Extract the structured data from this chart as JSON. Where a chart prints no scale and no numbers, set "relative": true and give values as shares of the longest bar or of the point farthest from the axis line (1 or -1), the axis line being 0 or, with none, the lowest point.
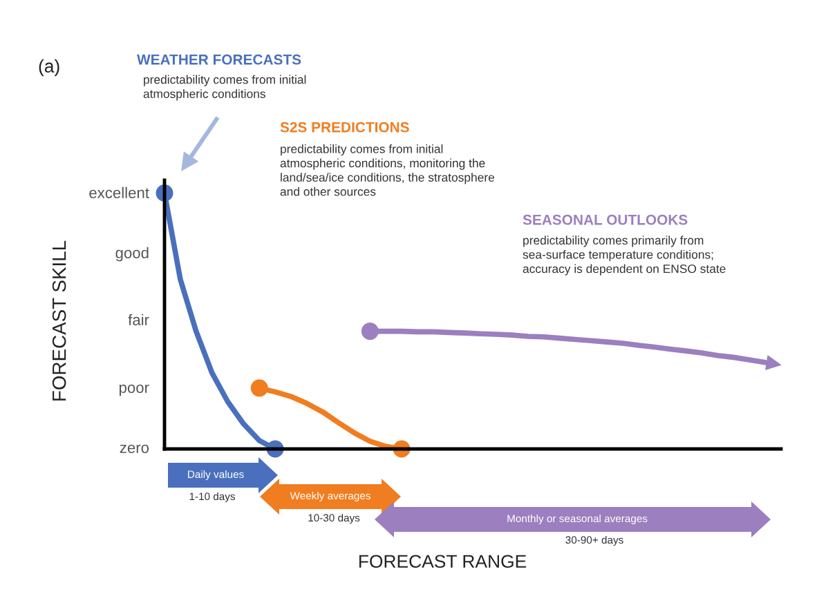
{
  "chart_data": {
    "type": "line",
    "categories": [
      null,
      null,
      null,
      null,
      null,
      null,
      null,
      null,
      null,
      null,
      null,
      null,
      null,
      null,
      null,
      null,
      null,
      null,
      null,
      null,
      null,
      null,
      null,
      null,
      null,
      null,
      null,
      null,
      null,
      null,
      null,
      null,
      null,
      null,
      null,
      null,
      null,
      null,
      null,
      null
    ],
    "relative": true,
    "grid": false,
    "line_style": "solid",
    "series": [
      {
        "color": "#4a70bd",
        "values": [
          1,
          0.663,
          0.46,
          0.298,
          0.185,
          0.098,
          0.033,
          0,
          null,
          null,
          null,
          null,
          null,
          null,
          null,
          null,
          null,
          null,
          null,
          null,
          null,
          null,
          null,
          null,
          null,
          null,
          null,
          null,
          null,
          null,
          null,
          null,
          null,
          null,
          null,
          null,
          null,
          null,
          null,
          null
        ]
      },
      {
        "color": "#f07d1f",
        "values": [
          null,
          null,
          null,
          null,
          null,
          null,
          0.238,
          0.223,
          0.205,
          0.178,
          0.145,
          0.103,
          0.063,
          0.03,
          0.01,
          0,
          null,
          null,
          null,
          null,
          null,
          null,
          null,
          null,
          null,
          null,
          null,
          null,
          null,
          null,
          null,
          null,
          null,
          null,
          null,
          null,
          null,
          null,
          null,
          null
        ]
      },
      {
        "color": "#9b7fbf",
        "values": [
          null,
          null,
          null,
          null,
          null,
          null,
          null,
          null,
          null,
          null,
          null,
          null,
          null,
          0.46,
          0.46,
          0.46,
          0.458,
          0.458,
          0.455,
          0.453,
          0.45,
          0.448,
          0.445,
          0.44,
          0.438,
          0.433,
          0.428,
          0.423,
          0.418,
          0.413,
          0.405,
          0.398,
          0.39,
          0.383,
          0.375,
          0.365,
          0.358,
          0.348,
          0.338,
          null
        ]
      }
    ],
    "annotations": [
      "(a)",
      "WEATHER FORECASTS",
      "predictability comes from initial\natmospheric conditions",
      "S2S PREDICTIONS",
      "predictability comes from initial\natmospheric conditions, monitoring the\nland/sea/ice conditions, the stratosphere\nand other sources",
      "SEASONAL OUTLOOKS",
      "predictability comes primarily from\nsea-surface temperature conditions;\naccuracy is dependent on ENSO state",
      "Daily values",
      "1-10 days",
      "Weekly averages",
      "10-30 days",
      "Monthly or seasonal averages",
      "30-90+ days",
      "excellent",
      "good",
      "fair",
      "poor",
      "zero",
      "FORECAST SKILL",
      "FORECAST RANGE"
    ]
  }
}
